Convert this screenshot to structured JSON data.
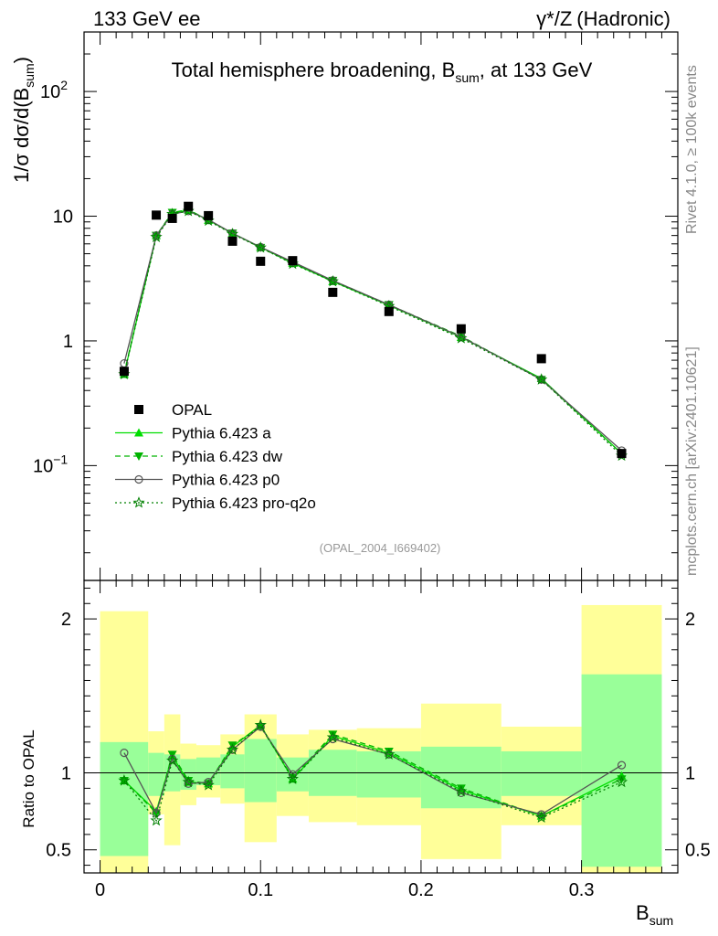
{
  "header": {
    "left": "133 GeV ee",
    "right_prefix": "γ*/Z",
    "right_suffix": "(Hadronic)"
  },
  "sidebar": {
    "rivet": "Rivet 4.1.0, ≥ 100k events",
    "mcplots": "mcplots.cern.ch [arXiv:2401.10621]"
  },
  "chart_data": {
    "type": "line",
    "title_main": "Total hemisphere broadening, B",
    "title_sub": "sum",
    "title_tail": ", at 133 GeV",
    "analysis_tag": "(OPAL_2004_I669402)",
    "ylabel_prefix": "1/σ  dσ/d(B",
    "ylabel_sub": "sum",
    "ylabel_suffix": ")",
    "xlabel_main": "B",
    "xlabel_sub": "sum",
    "ratio_ylabel": "Ratio to OPAL",
    "xlim": [
      -0.01,
      0.36
    ],
    "ylim": [
      0.012,
      300
    ],
    "yscale": "log",
    "ratio_ylim": [
      0.35,
      2.25
    ],
    "x_ticks": [
      {
        "v": 0,
        "label": "0"
      },
      {
        "v": 0.1,
        "label": "0.1"
      },
      {
        "v": 0.2,
        "label": "0.2"
      },
      {
        "v": 0.3,
        "label": "0.3"
      }
    ],
    "y_ticks": [
      {
        "v": 100,
        "base": "10",
        "exp": "2"
      },
      {
        "v": 10,
        "base": "10",
        "exp": ""
      },
      {
        "v": 1,
        "base": "1",
        "exp": ""
      },
      {
        "v": 0.1,
        "base": "10",
        "exp": "−1"
      }
    ],
    "ratio_ticks": [
      {
        "v": 2,
        "label": "2"
      },
      {
        "v": 1,
        "label": "1"
      },
      {
        "v": 0.5,
        "label": "0.5"
      }
    ],
    "bins": [
      {
        "lo": 0.0,
        "hi": 0.03,
        "x": 0.015,
        "y": 0.57,
        "y_band": [
          0.46,
          1.2
        ],
        "g_band": [
          0.21,
          2.05
        ]
      },
      {
        "lo": 0.03,
        "hi": 0.04,
        "x": 0.035,
        "y": 10.2,
        "y_band": [
          0.85,
          1.13
        ],
        "g_band": [
          0.73,
          1.27
        ]
      },
      {
        "lo": 0.04,
        "hi": 0.05,
        "x": 0.045,
        "y": 9.6,
        "y_band": [
          0.88,
          1.12
        ],
        "g_band": [
          0.53,
          1.38
        ]
      },
      {
        "lo": 0.05,
        "hi": 0.06,
        "x": 0.055,
        "y": 12.0,
        "y_band": [
          0.89,
          1.09
        ],
        "g_band": [
          0.79,
          1.19
        ]
      },
      {
        "lo": 0.06,
        "hi": 0.075,
        "x": 0.0675,
        "y": 10.1,
        "y_band": [
          0.92,
          1.1
        ],
        "g_band": [
          0.84,
          1.18
        ]
      },
      {
        "lo": 0.075,
        "hi": 0.09,
        "x": 0.0825,
        "y": 6.3,
        "y_band": [
          0.9,
          1.12
        ],
        "g_band": [
          0.8,
          1.25
        ]
      },
      {
        "lo": 0.09,
        "hi": 0.11,
        "x": 0.1,
        "y": 4.35,
        "y_band": [
          0.81,
          1.22
        ],
        "g_band": [
          0.55,
          1.38
        ]
      },
      {
        "lo": 0.11,
        "hi": 0.13,
        "x": 0.12,
        "y": 4.4,
        "y_band": [
          0.88,
          1.1
        ],
        "g_band": [
          0.72,
          1.25
        ]
      },
      {
        "lo": 0.13,
        "hi": 0.16,
        "x": 0.145,
        "y": 2.45,
        "y_band": [
          0.85,
          1.15
        ],
        "g_band": [
          0.68,
          1.28
        ]
      },
      {
        "lo": 0.16,
        "hi": 0.2,
        "x": 0.18,
        "y": 1.72,
        "y_band": [
          0.84,
          1.14
        ],
        "g_band": [
          0.66,
          1.29
        ]
      },
      {
        "lo": 0.2,
        "hi": 0.25,
        "x": 0.225,
        "y": 1.25,
        "y_band": [
          0.77,
          1.17
        ],
        "g_band": [
          0.44,
          1.45
        ]
      },
      {
        "lo": 0.25,
        "hi": 0.3,
        "x": 0.275,
        "y": 0.72,
        "y_band": [
          0.85,
          1.14
        ],
        "g_band": [
          0.66,
          1.3
        ]
      },
      {
        "lo": 0.3,
        "hi": 0.35,
        "x": 0.325,
        "y": 0.125,
        "y_band": [
          0.39,
          1.64
        ],
        "g_band": [
          0.33,
          2.09
        ]
      }
    ],
    "data_label": "OPAL",
    "series": [
      {
        "name": "Pythia 6.423 a",
        "color": "#00dd00",
        "dash": "",
        "marker": "triangle-up",
        "y": [
          0.54,
          7.0,
          10.6,
          11.2,
          9.3,
          7.3,
          5.65,
          4.2,
          3.0,
          1.93,
          1.07,
          0.5,
          0.125
        ],
        "ratio": [
          0.95,
          0.75,
          1.11,
          0.94,
          0.93,
          1.17,
          1.31,
          0.96,
          1.24,
          1.13,
          0.89,
          0.72,
          0.98
        ]
      },
      {
        "name": "Pythia 6.423 dw",
        "color": "#00b300",
        "dash": "6,4",
        "marker": "triangle-down",
        "y": [
          0.55,
          7.0,
          10.7,
          11.3,
          9.3,
          7.3,
          5.6,
          4.2,
          3.05,
          1.95,
          1.09,
          0.49,
          0.125
        ],
        "ratio": [
          0.95,
          0.74,
          1.12,
          0.95,
          0.93,
          1.18,
          1.3,
          0.97,
          1.25,
          1.14,
          0.9,
          0.72,
          0.96
        ]
      },
      {
        "name": "Pythia 6.423 p0",
        "color": "#555555",
        "dash": "",
        "marker": "circle-open",
        "y": [
          0.66,
          7.0,
          10.4,
          11.0,
          9.4,
          7.3,
          5.65,
          4.3,
          3.05,
          1.95,
          1.08,
          0.49,
          0.132
        ],
        "ratio": [
          1.13,
          0.74,
          1.09,
          0.93,
          0.94,
          1.15,
          1.3,
          0.99,
          1.22,
          1.12,
          0.87,
          0.73,
          1.05
        ]
      },
      {
        "name": "Pythia 6.423 pro-q2o",
        "color": "#008000",
        "dash": "2,3",
        "marker": "star",
        "y": [
          0.54,
          6.8,
          10.4,
          11.0,
          9.2,
          7.2,
          5.6,
          4.15,
          3.0,
          1.9,
          1.05,
          0.49,
          0.12
        ],
        "ratio": [
          0.95,
          0.69,
          1.08,
          0.94,
          0.92,
          1.15,
          1.31,
          0.96,
          1.23,
          1.12,
          0.88,
          0.71,
          0.94
        ]
      }
    ]
  }
}
